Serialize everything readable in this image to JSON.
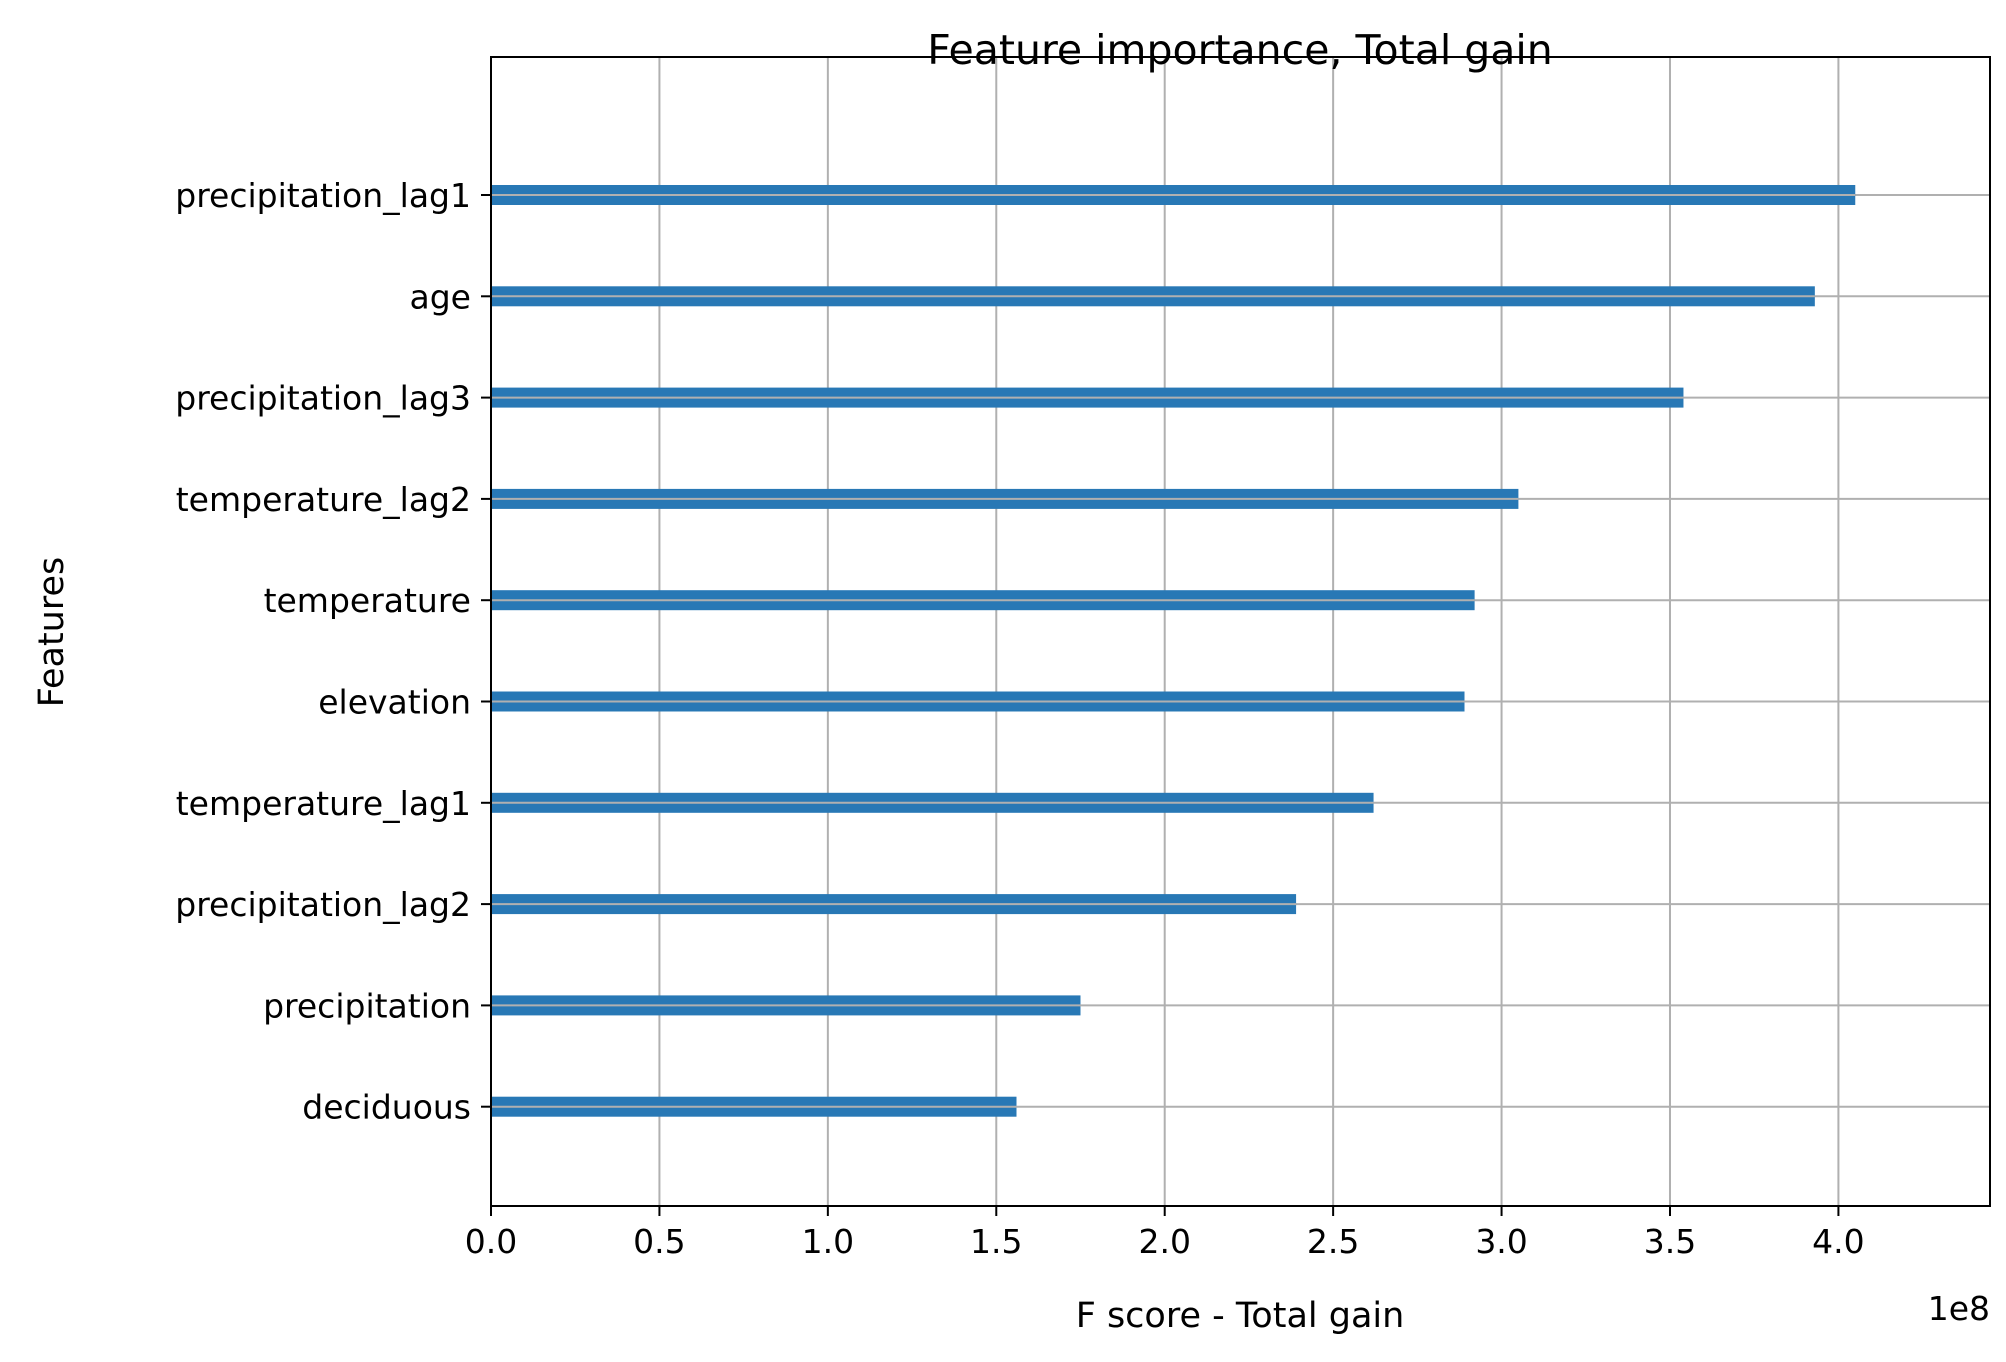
{
  "chart_data": {
    "type": "bar",
    "orientation": "horizontal",
    "title": "Feature importance, Total gain",
    "xlabel": "F score - Total gain",
    "ylabel": "Features",
    "x_offset_label": "1e8",
    "categories": [
      "precipitation_lag1",
      "age",
      "precipitation_lag3",
      "temperature_lag2",
      "temperature",
      "elevation",
      "temperature_lag1",
      "precipitation_lag2",
      "precipitation",
      "deciduous"
    ],
    "values": [
      405000000,
      393000000,
      354000000,
      305000000,
      292000000,
      289000000,
      262000000,
      239000000,
      175000000,
      156000000
    ],
    "xlim": [
      0,
      445000000
    ],
    "xticks": [
      0,
      50000000,
      100000000,
      150000000,
      200000000,
      250000000,
      300000000,
      350000000,
      400000000
    ],
    "xtick_labels": [
      "0.0",
      "0.5",
      "1.0",
      "1.5",
      "2.0",
      "2.5",
      "3.0",
      "3.5",
      "4.0"
    ],
    "grid": true,
    "colors": {
      "bar": "#2878b5",
      "grid": "#b0b0b0",
      "axis": "#000000"
    }
  }
}
